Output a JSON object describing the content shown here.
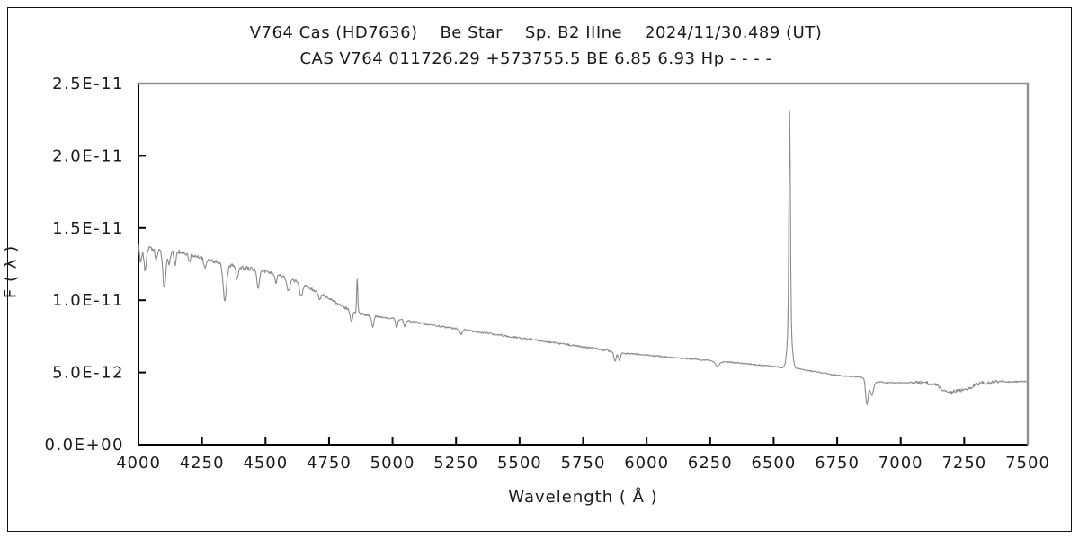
{
  "chart_data": {
    "type": "line",
    "title": "V764 Cas (HD7636)    Be Star    Sp. B2 IIIne    2024/11/30.489 (UT)",
    "subtitle": "CAS V764 011726.29 +573755.5 BE 6.85 6.93 Hp - - - -",
    "xlabel": "Wavelength ( Å )",
    "ylabel": "F ( λ )",
    "xlim": [
      4000,
      7500
    ],
    "ylim_e12": [
      0,
      25
    ],
    "ylim_labels": [
      "0.0E+00",
      "2.5E-11"
    ],
    "xticks": [
      4000,
      4250,
      4500,
      4750,
      5000,
      5250,
      5500,
      5750,
      6000,
      6250,
      6500,
      6750,
      7000,
      7250,
      7500
    ],
    "yticks": [
      {
        "value_e12": 0,
        "label": "0.0E+00"
      },
      {
        "value_e12": 5,
        "label": "5.0E-12"
      },
      {
        "value_e12": 10,
        "label": "1.0E-11"
      },
      {
        "value_e12": 15,
        "label": "1.5E-11"
      },
      {
        "value_e12": 20,
        "label": "2.0E-11"
      },
      {
        "value_e12": 25,
        "label": "2.5E-11"
      }
    ],
    "grid": false,
    "legend": "none",
    "line_color": "#8a8a8a",
    "axis_color": "#000000",
    "frame_shadow_color": "#8f8f8f",
    "flux_unit_scale": "1e-12",
    "sample_step_angstrom": 2.5,
    "continuum_points_e12": [
      [
        4000,
        13.9
      ],
      [
        4040,
        13.6
      ],
      [
        4080,
        13.5
      ],
      [
        4120,
        13.45
      ],
      [
        4160,
        13.35
      ],
      [
        4200,
        13.2
      ],
      [
        4250,
        12.95
      ],
      [
        4300,
        12.7
      ],
      [
        4350,
        12.45
      ],
      [
        4400,
        12.3
      ],
      [
        4450,
        12.15
      ],
      [
        4500,
        12.0
      ],
      [
        4550,
        11.75
      ],
      [
        4600,
        11.45
      ],
      [
        4650,
        11.1
      ],
      [
        4700,
        10.6
      ],
      [
        4750,
        10.1
      ],
      [
        4800,
        9.6
      ],
      [
        4850,
        9.15
      ],
      [
        4900,
        8.95
      ],
      [
        4950,
        8.85
      ],
      [
        5000,
        8.75
      ],
      [
        5100,
        8.45
      ],
      [
        5200,
        8.15
      ],
      [
        5300,
        7.9
      ],
      [
        5400,
        7.65
      ],
      [
        5500,
        7.4
      ],
      [
        5600,
        7.15
      ],
      [
        5700,
        6.9
      ],
      [
        5800,
        6.65
      ],
      [
        5900,
        6.35
      ],
      [
        6000,
        6.2
      ],
      [
        6100,
        6.05
      ],
      [
        6200,
        5.9
      ],
      [
        6300,
        5.75
      ],
      [
        6400,
        5.6
      ],
      [
        6500,
        5.4
      ],
      [
        6600,
        5.25
      ],
      [
        6700,
        4.95
      ],
      [
        6750,
        4.8
      ],
      [
        6800,
        4.72
      ],
      [
        6840,
        4.68
      ],
      [
        6900,
        4.35
      ],
      [
        6950,
        4.3
      ],
      [
        7000,
        4.3
      ],
      [
        7050,
        4.3
      ],
      [
        7100,
        4.3
      ],
      [
        7150,
        4.1
      ],
      [
        7200,
        4.0
      ],
      [
        7250,
        4.1
      ],
      [
        7300,
        4.25
      ],
      [
        7350,
        4.3
      ],
      [
        7400,
        4.35
      ],
      [
        7450,
        4.35
      ],
      [
        7500,
        4.4
      ]
    ],
    "emission_lines": [
      {
        "name": "H-beta 4861",
        "center": 4861,
        "amp_e12": 2.35,
        "sigma": 2.2
      },
      {
        "name": "H-alpha 6563 core",
        "center": 6563,
        "amp_e12": 14.2,
        "sigma": 2.8
      },
      {
        "name": "H-alpha 6563 pedestal",
        "center": 6563,
        "amp_e12": 3.6,
        "sigma": 8
      }
    ],
    "absorption_lines": [
      {
        "center": 4009,
        "depth_e12": 1.2,
        "sigma": 4
      },
      {
        "center": 4026,
        "depth_e12": 1.6,
        "sigma": 5
      },
      {
        "center": 4070,
        "depth_e12": 0.8,
        "sigma": 4
      },
      {
        "center": 4102,
        "depth_e12": 2.6,
        "sigma": 6
      },
      {
        "center": 4121,
        "depth_e12": 0.9,
        "sigma": 4
      },
      {
        "center": 4144,
        "depth_e12": 0.9,
        "sigma": 4
      },
      {
        "center": 4200,
        "depth_e12": 0.6,
        "sigma": 4
      },
      {
        "center": 4262,
        "depth_e12": 0.7,
        "sigma": 4
      },
      {
        "center": 4340,
        "depth_e12": 2.5,
        "sigma": 7
      },
      {
        "center": 4388,
        "depth_e12": 1.0,
        "sigma": 4
      },
      {
        "center": 4471,
        "depth_e12": 1.3,
        "sigma": 5
      },
      {
        "center": 4541,
        "depth_e12": 0.6,
        "sigma": 4
      },
      {
        "center": 4590,
        "depth_e12": 0.9,
        "sigma": 6
      },
      {
        "center": 4640,
        "depth_e12": 0.9,
        "sigma": 6
      },
      {
        "center": 4713,
        "depth_e12": 0.5,
        "sigma": 4
      },
      {
        "center": 4838,
        "depth_e12": 0.8,
        "sigma": 4
      },
      {
        "center": 4922,
        "depth_e12": 0.8,
        "sigma": 4
      },
      {
        "center": 5016,
        "depth_e12": 0.6,
        "sigma": 4
      },
      {
        "center": 5048,
        "depth_e12": 0.4,
        "sigma": 4
      },
      {
        "center": 5270,
        "depth_e12": 0.3,
        "sigma": 5
      },
      {
        "center": 5876,
        "depth_e12": 0.6,
        "sigma": 5
      },
      {
        "center": 5893,
        "depth_e12": 0.6,
        "sigma": 4
      },
      {
        "center": 6278,
        "depth_e12": 0.35,
        "sigma": 8
      },
      {
        "center": 6867,
        "depth_e12": 1.75,
        "sigma": 5
      },
      {
        "center": 6886,
        "depth_e12": 1.0,
        "sigma": 7
      },
      {
        "center": 7186,
        "depth_e12": 0.4,
        "sigma": 22
      },
      {
        "center": 7250,
        "depth_e12": 0.3,
        "sigma": 30
      }
    ],
    "noise": {
      "seed": 987654321,
      "bands": [
        {
          "from": 4000,
          "to": 4450,
          "amp_e12": 0.14
        },
        {
          "from": 4450,
          "to": 4900,
          "amp_e12": 0.1
        },
        {
          "from": 4900,
          "to": 5900,
          "amp_e12": 0.065
        },
        {
          "from": 5900,
          "to": 7050,
          "amp_e12": 0.045
        },
        {
          "from": 7050,
          "to": 7400,
          "amp_e12": 0.13
        },
        {
          "from": 7400,
          "to": 7500,
          "amp_e12": 0.05
        }
      ]
    }
  }
}
